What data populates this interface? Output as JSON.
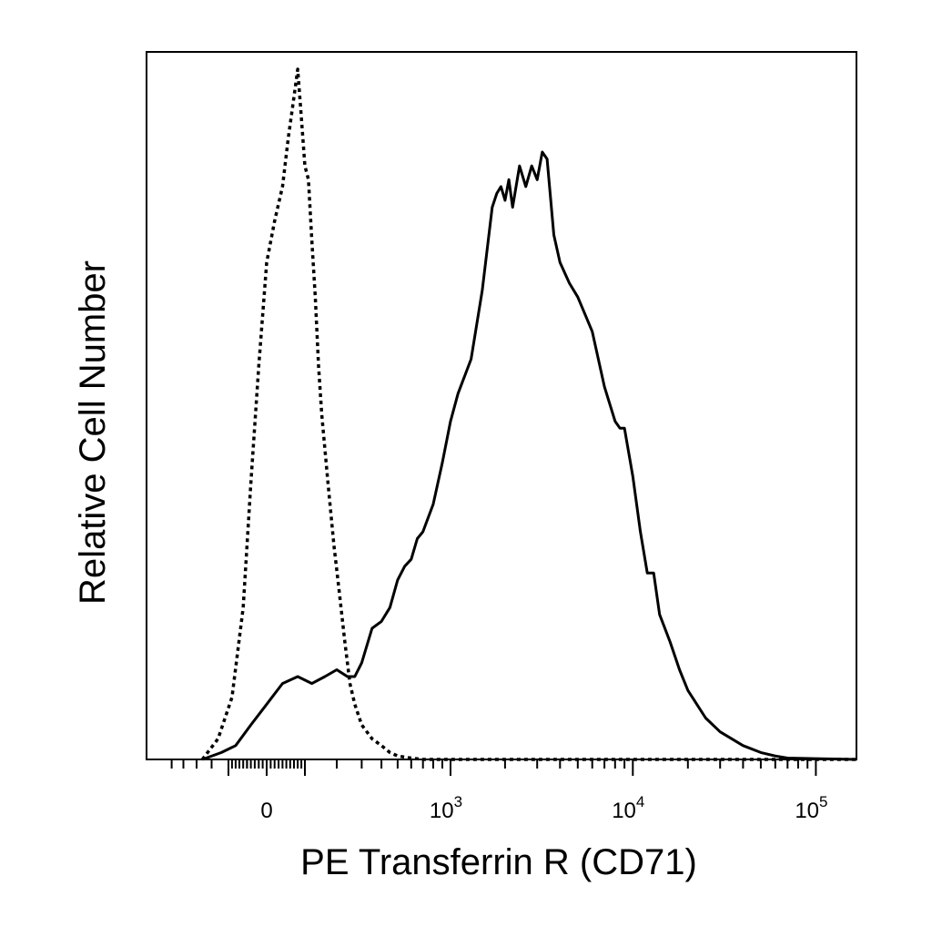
{
  "chart_data": {
    "type": "area",
    "title": "",
    "xlabel": "PE Transferrin R (CD71)",
    "ylabel": "Relative Cell Number",
    "x_scale": "biexponential",
    "xlim": [
      -300,
      200000
    ],
    "ylim": [
      0,
      100
    ],
    "grid": false,
    "legend": "none",
    "x_tick_labels": [
      {
        "base": "0",
        "exp": ""
      },
      {
        "base": "10",
        "exp": "3"
      },
      {
        "base": "10",
        "exp": "4"
      },
      {
        "base": "10",
        "exp": "5"
      }
    ],
    "series": [
      {
        "style": "dotted",
        "color": "#000000",
        "x": [
          -180,
          -130,
          -90,
          -60,
          -40,
          -20,
          0,
          20,
          40,
          55,
          70,
          80,
          90,
          100,
          110,
          120,
          130,
          140,
          150,
          170,
          190,
          210,
          230,
          250,
          270,
          300,
          350,
          400,
          450,
          500,
          600,
          700,
          800,
          1000,
          2000,
          5000,
          20000,
          200000
        ],
        "y": [
          0,
          3,
          9,
          22,
          40,
          57,
          72,
          78,
          83,
          90,
          96,
          100,
          93,
          86,
          84,
          75,
          67,
          57,
          50,
          40,
          31,
          24,
          17,
          11,
          8,
          5,
          3,
          2,
          1,
          0.5,
          0.2,
          0,
          0,
          0,
          0,
          0,
          0,
          0
        ]
      },
      {
        "style": "solid",
        "color": "#000000",
        "x": [
          -180,
          -120,
          -80,
          -40,
          0,
          40,
          80,
          120,
          160,
          200,
          240,
          270,
          300,
          350,
          400,
          450,
          500,
          550,
          600,
          650,
          700,
          800,
          900,
          1000,
          1100,
          1300,
          1500,
          1700,
          1800,
          1900,
          2000,
          2100,
          2200,
          2400,
          2600,
          2800,
          3000,
          3200,
          3400,
          3700,
          4000,
          4500,
          5000,
          6000,
          7000,
          8000,
          8500,
          9000,
          10000,
          11000,
          12000,
          13000,
          14000,
          16000,
          18000,
          20000,
          25000,
          30000,
          40000,
          50000,
          60000,
          70000,
          200000
        ],
        "y": [
          0,
          1,
          2,
          5,
          8,
          11,
          12,
          11,
          12,
          13,
          12,
          12,
          14,
          19,
          20,
          22,
          26,
          28,
          29,
          32,
          33,
          37,
          43,
          49,
          53,
          58,
          68,
          80,
          82,
          83,
          81,
          84,
          80,
          86,
          83,
          86,
          84,
          88,
          87,
          76,
          72,
          69,
          67,
          62,
          54,
          49,
          48,
          48,
          41,
          33,
          27,
          27,
          21,
          17,
          13,
          10,
          6,
          4,
          2,
          1,
          0.5,
          0.2,
          0
        ]
      }
    ]
  }
}
